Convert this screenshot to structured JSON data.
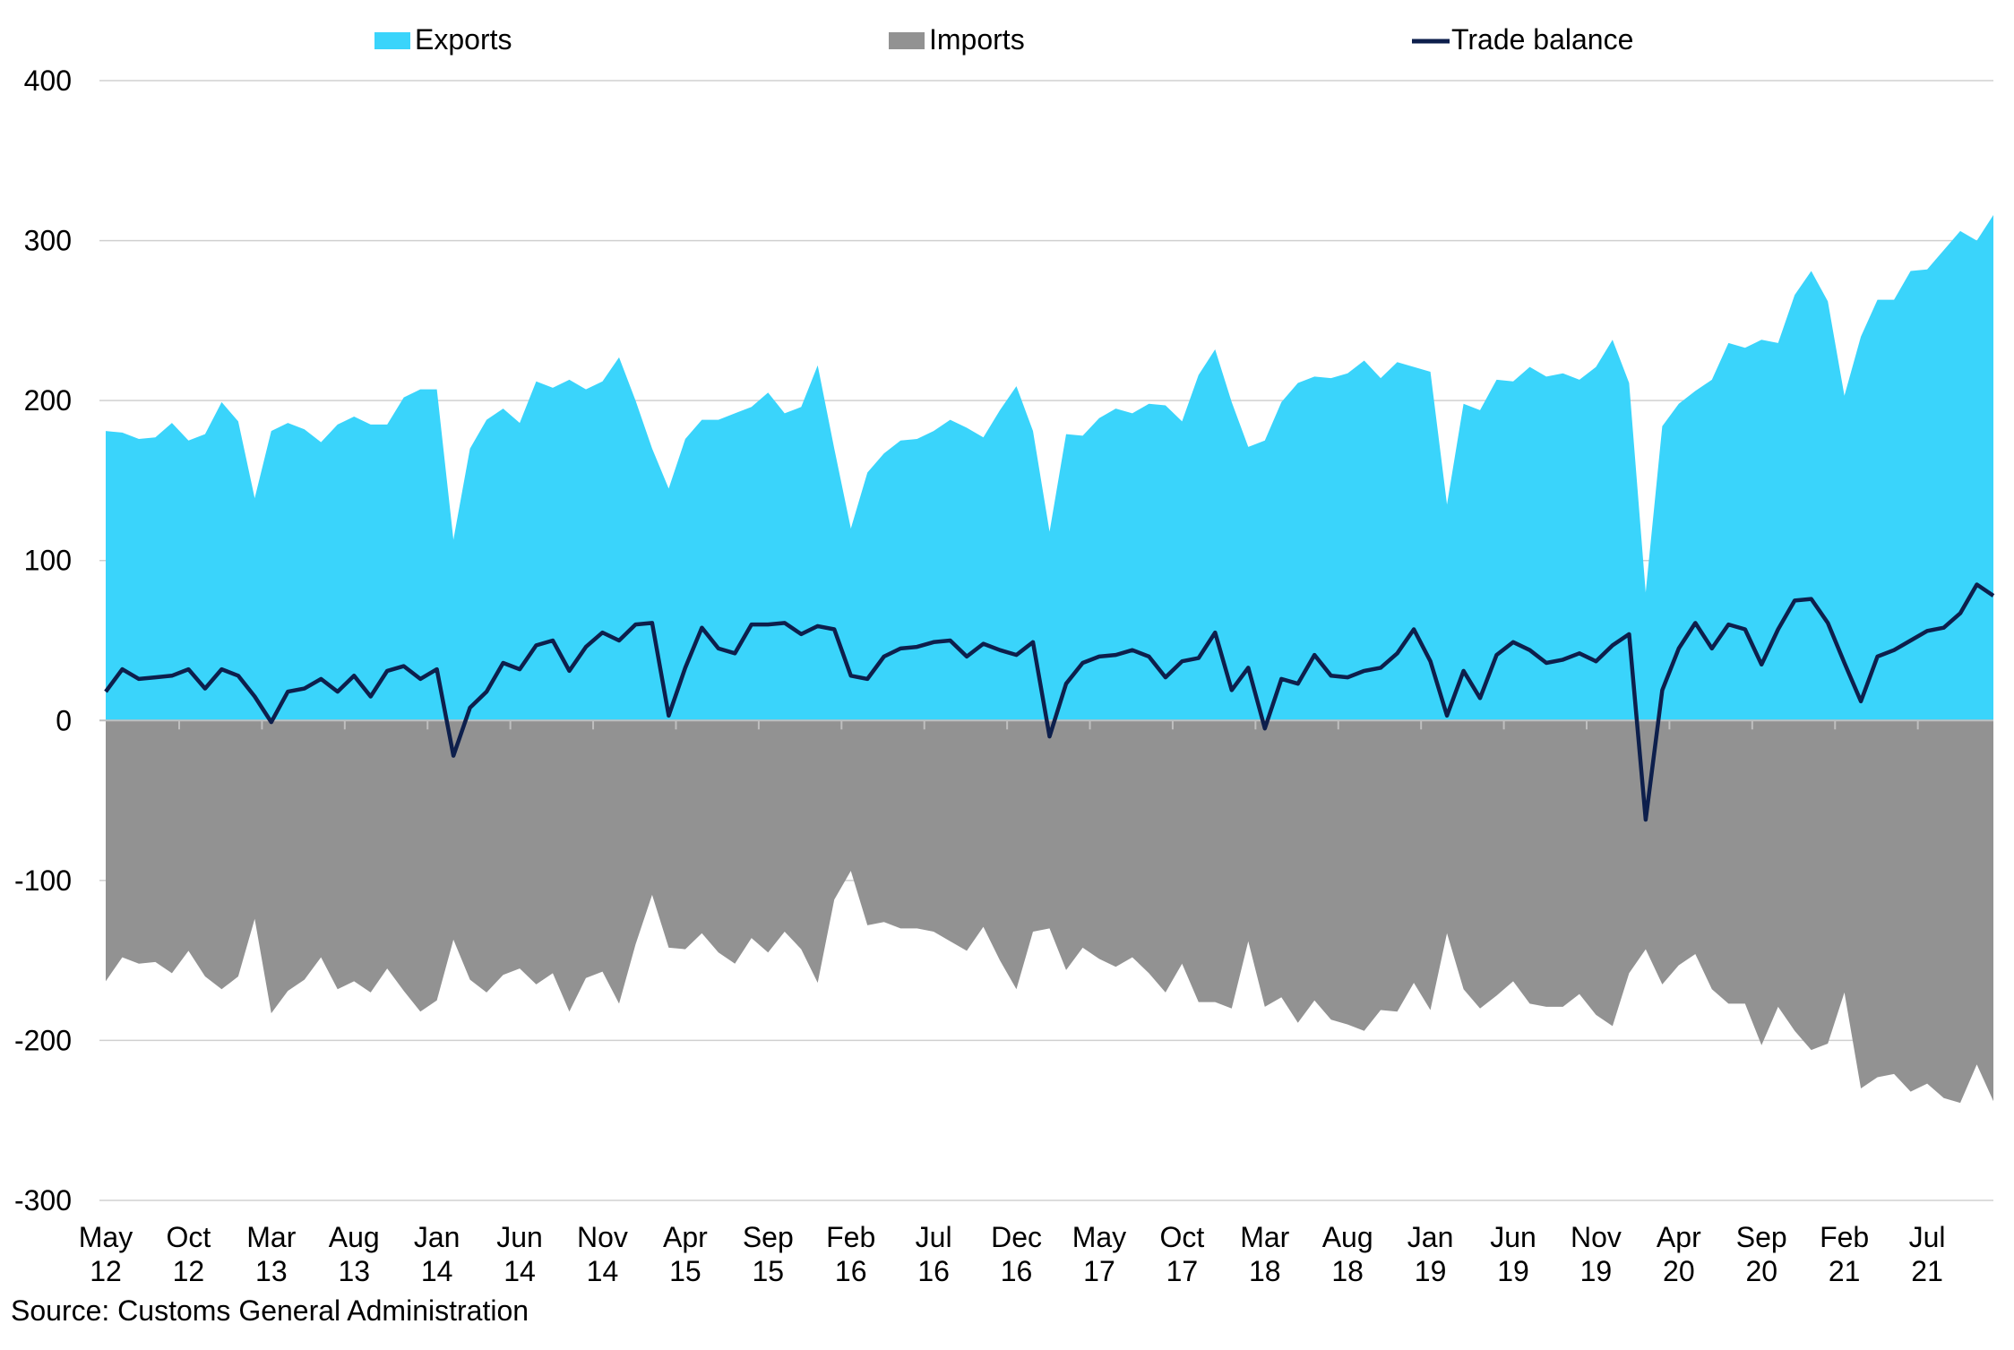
{
  "source": "Source: Customs General Administration",
  "colors": {
    "exports": "#3ad4fb",
    "imports": "#929292",
    "balance": "#0d1f4c",
    "grid": "#d0d0d0"
  },
  "chart_data": {
    "type": "area",
    "title": "",
    "xlabel": "",
    "ylabel": "",
    "ylim": [
      -300,
      400
    ],
    "yticks": [
      400,
      300,
      200,
      100,
      0,
      -100,
      -200,
      -300
    ],
    "grid": true,
    "legend_position": "top",
    "start_month": "May 12",
    "x_tick_labels": [
      {
        "month": "May",
        "year": "12",
        "index": 0
      },
      {
        "month": "Oct",
        "year": "12",
        "index": 5
      },
      {
        "month": "Mar",
        "year": "13",
        "index": 10
      },
      {
        "month": "Aug",
        "year": "13",
        "index": 15
      },
      {
        "month": "Jan",
        "year": "14",
        "index": 20
      },
      {
        "month": "Jun",
        "year": "14",
        "index": 25
      },
      {
        "month": "Nov",
        "year": "14",
        "index": 30
      },
      {
        "month": "Apr",
        "year": "15",
        "index": 35
      },
      {
        "month": "Sep",
        "year": "15",
        "index": 40
      },
      {
        "month": "Feb",
        "year": "16",
        "index": 45
      },
      {
        "month": "Jul",
        "year": "16",
        "index": 50
      },
      {
        "month": "Dec",
        "year": "16",
        "index": 55
      },
      {
        "month": "May",
        "year": "17",
        "index": 60
      },
      {
        "month": "Oct",
        "year": "17",
        "index": 65
      },
      {
        "month": "Mar",
        "year": "18",
        "index": 70
      },
      {
        "month": "Aug",
        "year": "18",
        "index": 75
      },
      {
        "month": "Jan",
        "year": "19",
        "index": 80
      },
      {
        "month": "Jun",
        "year": "19",
        "index": 85
      },
      {
        "month": "Nov",
        "year": "19",
        "index": 90
      },
      {
        "month": "Apr",
        "year": "20",
        "index": 95
      },
      {
        "month": "Sep",
        "year": "20",
        "index": 100
      },
      {
        "month": "Feb",
        "year": "21",
        "index": 105
      },
      {
        "month": "Jul",
        "year": "21",
        "index": 110
      }
    ],
    "series": [
      {
        "name": "Exports",
        "kind": "area",
        "values": [
          181,
          180,
          176,
          177,
          186,
          175,
          179,
          199,
          187,
          139,
          181,
          186,
          182,
          174,
          185,
          190,
          185,
          185,
          202,
          207,
          207,
          113,
          170,
          188,
          195,
          186,
          212,
          208,
          213,
          207,
          212,
          227,
          200,
          170,
          145,
          176,
          188,
          188,
          192,
          196,
          205,
          192,
          196,
          222,
          170,
          120,
          155,
          167,
          175,
          176,
          181,
          188,
          183,
          177,
          194,
          209,
          181,
          118,
          179,
          178,
          189,
          195,
          192,
          198,
          197,
          187,
          216,
          232,
          199,
          171,
          175,
          199,
          211,
          215,
          214,
          217,
          225,
          214,
          224,
          221,
          218,
          135,
          198,
          194,
          213,
          212,
          221,
          215,
          217,
          213,
          221,
          238,
          211,
          80,
          184,
          198,
          206,
          213,
          236,
          233,
          238,
          236,
          266,
          281,
          262,
          203,
          240,
          263,
          263,
          281,
          282,
          294,
          306,
          300,
          316
        ]
      },
      {
        "name": "Imports",
        "kind": "area",
        "values": [
          -163,
          -148,
          -152,
          -151,
          -158,
          -144,
          -160,
          -168,
          -160,
          -124,
          -183,
          -169,
          -162,
          -148,
          -168,
          -163,
          -170,
          -155,
          -169,
          -182,
          -175,
          -137,
          -162,
          -170,
          -159,
          -155,
          -165,
          -158,
          -182,
          -161,
          -157,
          -177,
          -140,
          -109,
          -142,
          -143,
          -133,
          -145,
          -152,
          -136,
          -145,
          -132,
          -143,
          -164,
          -112,
          -94,
          -128,
          -126,
          -130,
          -130,
          -132,
          -138,
          -144,
          -129,
          -150,
          -168,
          -132,
          -130,
          -156,
          -142,
          -149,
          -154,
          -148,
          -158,
          -170,
          -152,
          -176,
          -176,
          -180,
          -138,
          -179,
          -173,
          -189,
          -175,
          -187,
          -190,
          -194,
          -181,
          -182,
          -164,
          -181,
          -133,
          -168,
          -180,
          -172,
          -163,
          -177,
          -179,
          -179,
          -171,
          -184,
          -191,
          -158,
          -143,
          -165,
          -153,
          -146,
          -168,
          -177,
          -177,
          -203,
          -179,
          -194,
          -206,
          -202,
          -170,
          -230,
          -223,
          -221,
          -232,
          -227,
          -236,
          -239,
          -215,
          -238
        ]
      },
      {
        "name": "Trade balance",
        "kind": "line",
        "values": [
          18,
          32,
          26,
          27,
          28,
          32,
          20,
          32,
          28,
          15,
          -1,
          18,
          20,
          26,
          18,
          28,
          15,
          31,
          34,
          26,
          32,
          -22,
          8,
          18,
          36,
          32,
          47,
          50,
          31,
          46,
          55,
          50,
          60,
          61,
          3,
          33,
          58,
          45,
          42,
          60,
          60,
          61,
          54,
          59,
          57,
          28,
          26,
          40,
          45,
          46,
          49,
          50,
          40,
          48,
          44,
          41,
          49,
          -10,
          23,
          36,
          40,
          41,
          44,
          40,
          27,
          37,
          39,
          55,
          19,
          33,
          -5,
          26,
          23,
          41,
          28,
          27,
          31,
          33,
          42,
          57,
          37,
          3,
          31,
          14,
          41,
          49,
          44,
          36,
          38,
          42,
          37,
          47,
          54,
          -62,
          19,
          45,
          61,
          45,
          60,
          57,
          35,
          57,
          75,
          76,
          61,
          36,
          12,
          40,
          44,
          50,
          56,
          58,
          67,
          85,
          78
        ]
      }
    ]
  }
}
